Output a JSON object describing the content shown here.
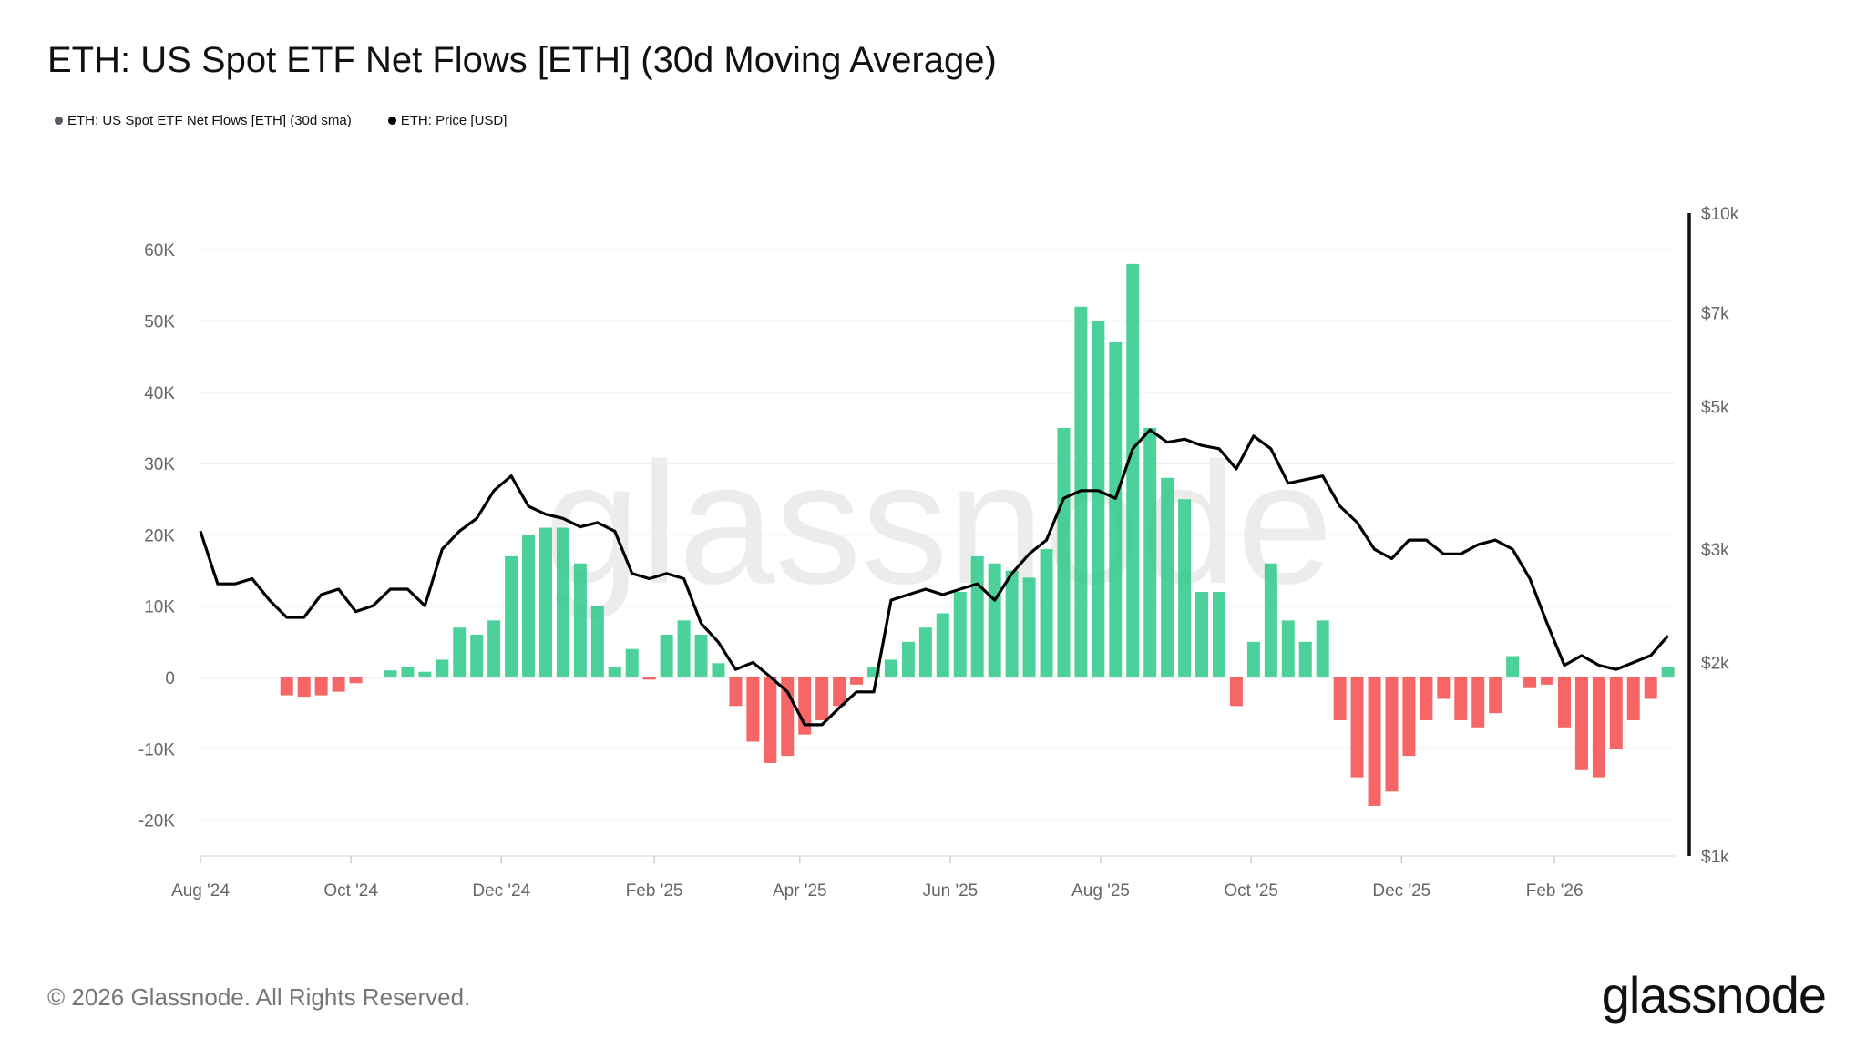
{
  "title": "ETH: US Spot ETF Net Flows [ETH] (30d Moving Average)",
  "footer": "© 2026 Glassnode. All Rights Reserved.",
  "logo": "glassnode",
  "chart_data": {
    "type": "bar+line",
    "legend": [
      {
        "name": "ETH: US Spot ETF Net Flows [ETH] (30d sma)",
        "color": "#555a64"
      },
      {
        "name": "ETH: Price [USD]",
        "color": "#000000"
      }
    ],
    "legend_position": "top-left",
    "watermark": "glassnode",
    "x_ticks": [
      "Aug '24",
      "Oct '24",
      "Dec '24",
      "Feb '25",
      "Apr '25",
      "Jun '25",
      "Aug '25",
      "Oct '25",
      "Dec '25",
      "Feb '26"
    ],
    "x_tick_dates": [
      "2024-08-01",
      "2024-10-01",
      "2024-12-01",
      "2025-02-01",
      "2025-04-01",
      "2025-06-01",
      "2025-08-01",
      "2025-10-01",
      "2025-12-01",
      "2026-02-01"
    ],
    "y_left": {
      "ticks": [
        60000,
        50000,
        40000,
        30000,
        20000,
        10000,
        0,
        -10000,
        -20000
      ],
      "tick_labels": [
        "60K",
        "50K",
        "40K",
        "30K",
        "20K",
        "10K",
        "0",
        "-10K",
        "-20K"
      ],
      "range": [
        -25000,
        65000
      ]
    },
    "y_right": {
      "scale": "log",
      "ticks": [
        10000,
        7000,
        5000,
        3000,
        2000,
        1000
      ],
      "tick_labels": [
        "$10k",
        "$7k",
        "$5k",
        "$3k",
        "$2k",
        "$1k"
      ],
      "range": [
        1000,
        10000
      ]
    },
    "grid": true,
    "colors": {
      "positive": "#2ec98a",
      "negative": "#f44b4b",
      "price": "#000000"
    },
    "dates": [
      "2024-08-01",
      "2024-08-08",
      "2024-08-15",
      "2024-08-22",
      "2024-08-29",
      "2024-09-05",
      "2024-09-12",
      "2024-09-19",
      "2024-09-26",
      "2024-10-03",
      "2024-10-10",
      "2024-10-17",
      "2024-10-24",
      "2024-10-31",
      "2024-11-07",
      "2024-11-14",
      "2024-11-21",
      "2024-11-28",
      "2024-12-05",
      "2024-12-12",
      "2024-12-19",
      "2024-12-26",
      "2025-01-02",
      "2025-01-09",
      "2025-01-16",
      "2025-01-23",
      "2025-01-30",
      "2025-02-06",
      "2025-02-13",
      "2025-02-20",
      "2025-02-27",
      "2025-03-06",
      "2025-03-13",
      "2025-03-20",
      "2025-03-27",
      "2025-04-03",
      "2025-04-10",
      "2025-04-17",
      "2025-04-24",
      "2025-05-01",
      "2025-05-08",
      "2025-05-15",
      "2025-05-22",
      "2025-05-29",
      "2025-06-05",
      "2025-06-12",
      "2025-06-19",
      "2025-06-26",
      "2025-07-03",
      "2025-07-10",
      "2025-07-17",
      "2025-07-24",
      "2025-07-31",
      "2025-08-07",
      "2025-08-14",
      "2025-08-21",
      "2025-08-28",
      "2025-09-04",
      "2025-09-11",
      "2025-09-18",
      "2025-09-25",
      "2025-10-02",
      "2025-10-09",
      "2025-10-16",
      "2025-10-23",
      "2025-10-30",
      "2025-11-06",
      "2025-11-13",
      "2025-11-20",
      "2025-11-27",
      "2025-12-04",
      "2025-12-11",
      "2025-12-18",
      "2025-12-25",
      "2026-01-01",
      "2026-01-08",
      "2026-01-15",
      "2026-01-22",
      "2026-01-29",
      "2026-02-05",
      "2026-02-12",
      "2026-02-19",
      "2026-02-26",
      "2026-03-05",
      "2026-03-12",
      "2026-03-19"
    ],
    "series": [
      {
        "name": "ETH: US Spot ETF Net Flows [ETH] (30d sma)",
        "type": "bar",
        "values": [
          0,
          0,
          0,
          0,
          0,
          -2500,
          -2700,
          -2500,
          -2000,
          -800,
          0,
          1000,
          1500,
          800,
          2500,
          7000,
          6000,
          8000,
          17000,
          20000,
          21000,
          21000,
          16000,
          10000,
          1500,
          4000,
          -300,
          6000,
          8000,
          6000,
          2000,
          -4000,
          -9000,
          -12000,
          -11000,
          -8000,
          -6000,
          -4000,
          -1000,
          1500,
          2500,
          5000,
          7000,
          9000,
          12000,
          17000,
          16000,
          15000,
          14000,
          18000,
          35000,
          52000,
          50000,
          47000,
          58000,
          35000,
          28000,
          25000,
          12000,
          12000,
          -4000,
          5000,
          16000,
          8000,
          5000,
          8000,
          -6000,
          -14000,
          -18000,
          -16000,
          -11000,
          -6000,
          -3000,
          -6000,
          -7000,
          -5000,
          3000,
          -1500,
          -1000,
          -7000,
          -13000,
          -14000,
          -10000,
          -6000,
          -3000,
          1500
        ]
      },
      {
        "name": "ETH: Price [USD]",
        "type": "line",
        "values": [
          3200,
          2650,
          2650,
          2700,
          2500,
          2350,
          2350,
          2550,
          2600,
          2400,
          2450,
          2600,
          2600,
          2450,
          3000,
          3200,
          3350,
          3700,
          3900,
          3500,
          3400,
          3350,
          3250,
          3300,
          3200,
          2750,
          2700,
          2750,
          2700,
          2300,
          2150,
          1950,
          2000,
          1900,
          1800,
          1600,
          1600,
          1700,
          1800,
          1800,
          2500,
          2550,
          2600,
          2550,
          2600,
          2650,
          2500,
          2750,
          2950,
          3100,
          3600,
          3700,
          3700,
          3600,
          4300,
          4600,
          4400,
          4450,
          4350,
          4300,
          4000,
          4500,
          4300,
          3800,
          3850,
          3900,
          3500,
          3300,
          3000,
          2900,
          3100,
          3100,
          2950,
          2950,
          3050,
          3100,
          3000,
          2700,
          2300,
          1980,
          2050,
          1980,
          1950,
          2000,
          2050,
          2200
        ]
      }
    ]
  }
}
